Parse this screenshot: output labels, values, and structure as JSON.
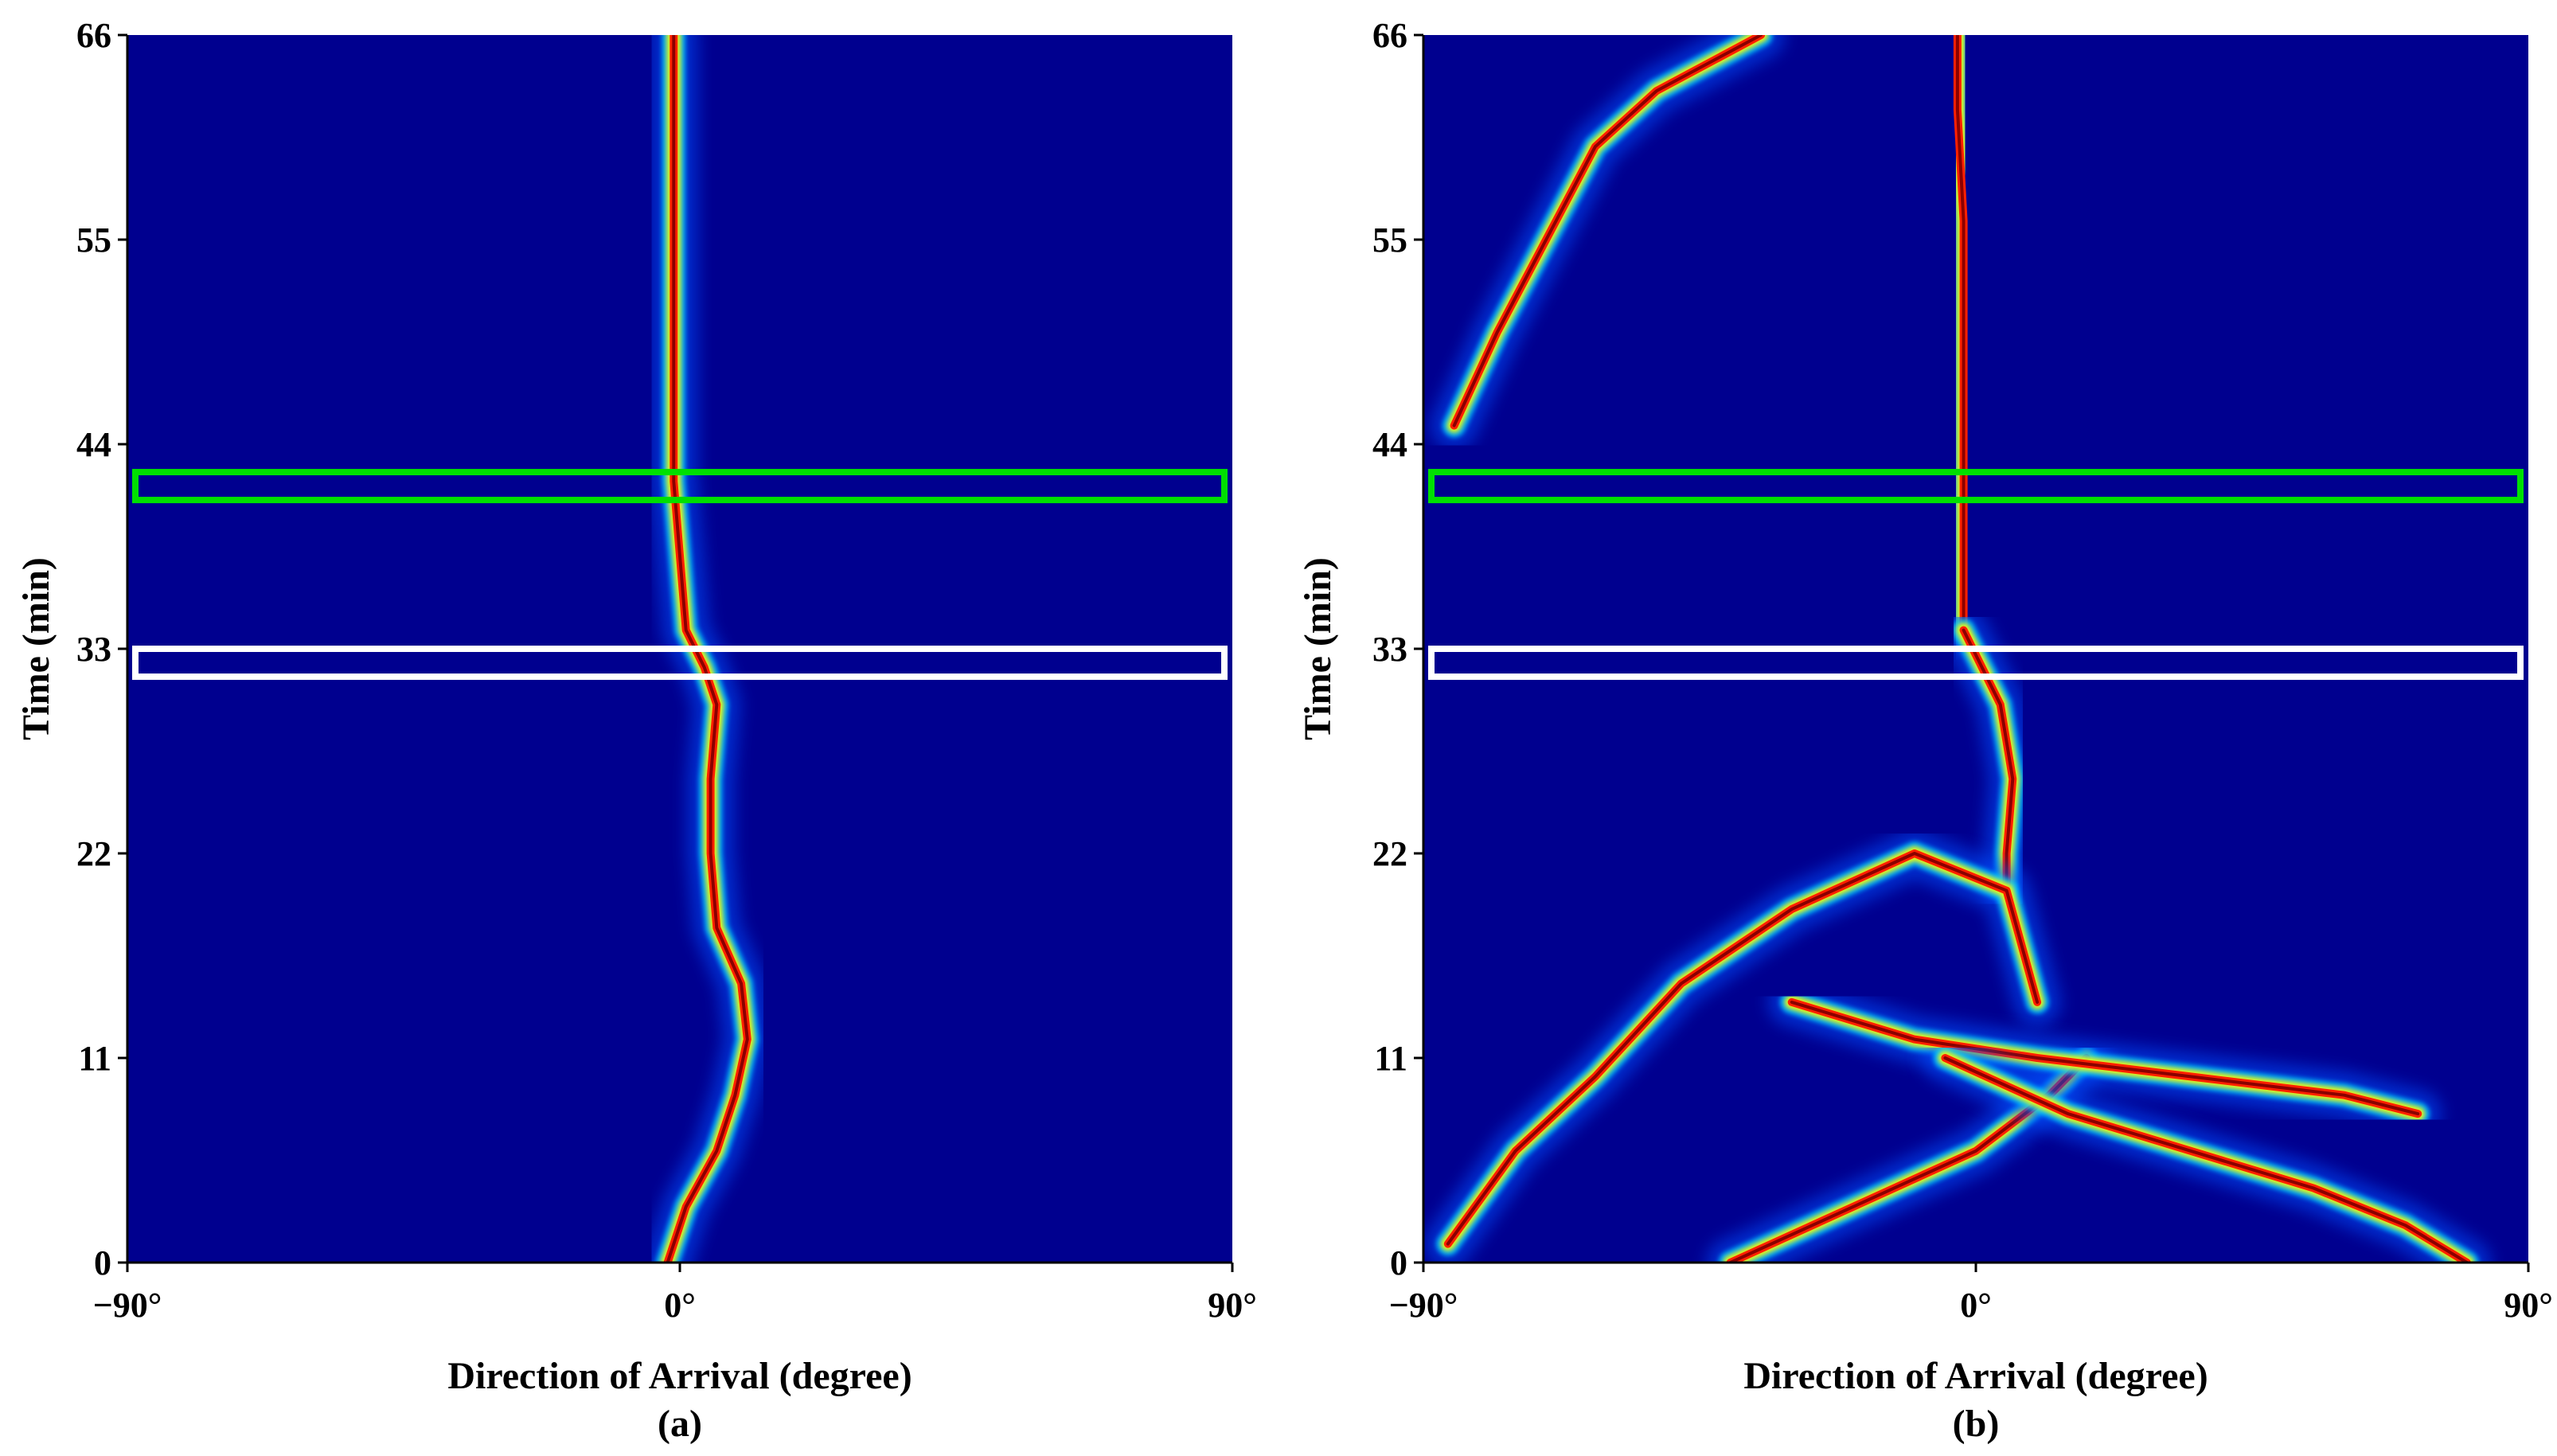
{
  "chart_data": [
    {
      "type": "heatmap",
      "panel_label": "(a)",
      "xlabel": "Direction of Arrival (degree)",
      "ylabel": "Time (min)",
      "xlim": [
        -90,
        90
      ],
      "ylim": [
        0,
        66
      ],
      "x_ticks": [
        "−90°",
        "0°",
        "90°"
      ],
      "x_tick_values": [
        -90,
        0,
        90
      ],
      "y_ticks": [
        "0",
        "11",
        "22",
        "33",
        "44",
        "55",
        "66"
      ],
      "y_tick_values": [
        0,
        11,
        22,
        33,
        44,
        55,
        66
      ],
      "colormap": "jet",
      "background_color": "#00008f",
      "tracks": [
        {
          "points": [
            [
              -2,
              0
            ],
            [
              1,
              3
            ],
            [
              6,
              6
            ],
            [
              9,
              9
            ],
            [
              11,
              12
            ],
            [
              10,
              15
            ],
            [
              6,
              18
            ],
            [
              5,
              22
            ],
            [
              5,
              26
            ],
            [
              6,
              30
            ],
            [
              4,
              32
            ],
            [
              1,
              34
            ],
            [
              0,
              38
            ],
            [
              -1,
              42
            ],
            [
              -1,
              48
            ],
            [
              -1,
              55
            ],
            [
              -1,
              62
            ],
            [
              -1,
              66
            ]
          ]
        }
      ],
      "highlight_boxes": [
        {
          "color": "#00e000",
          "t_range": [
            41,
            42.5
          ]
        },
        {
          "color": "#ffffff",
          "t_range": [
            31.5,
            33
          ]
        }
      ]
    },
    {
      "type": "heatmap",
      "panel_label": "(b)",
      "xlabel": "Direction of Arrival (degree)",
      "ylabel": "Time (min)",
      "xlim": [
        -90,
        90
      ],
      "ylim": [
        0,
        66
      ],
      "x_ticks": [
        "−90°",
        "0°",
        "90°"
      ],
      "x_tick_values": [
        -90,
        0,
        90
      ],
      "y_ticks": [
        "0",
        "11",
        "22",
        "33",
        "44",
        "55",
        "66"
      ],
      "y_tick_values": [
        0,
        11,
        22,
        33,
        44,
        55,
        66
      ],
      "colormap": "jet",
      "background_color": "#00008f",
      "tracks": [
        {
          "points": [
            [
              -2,
              34
            ],
            [
              -2,
              40
            ],
            [
              -2,
              48
            ],
            [
              -2,
              56
            ],
            [
              -3,
              62
            ],
            [
              -3,
              66
            ]
          ]
        },
        {
          "points": [
            [
              -2,
              34
            ],
            [
              4,
              30
            ],
            [
              6,
              26
            ],
            [
              5,
              22
            ],
            [
              5,
              20
            ]
          ]
        },
        {
          "points": [
            [
              -86,
              1
            ],
            [
              -75,
              6
            ],
            [
              -62,
              10
            ],
            [
              -48,
              15
            ],
            [
              -30,
              19
            ],
            [
              -10,
              22
            ],
            [
              5,
              20
            ],
            [
              10,
              14
            ]
          ]
        },
        {
          "points": [
            [
              -85,
              45
            ],
            [
              -78,
              50
            ],
            [
              -70,
              55
            ],
            [
              -62,
              60
            ],
            [
              -52,
              63
            ],
            [
              -35,
              66
            ]
          ]
        },
        {
          "points": [
            [
              -40,
              0
            ],
            [
              -20,
              3
            ],
            [
              0,
              6
            ],
            [
              12,
              9
            ],
            [
              18,
              11
            ]
          ]
        },
        {
          "points": [
            [
              -30,
              14
            ],
            [
              -10,
              12
            ],
            [
              10,
              11
            ],
            [
              35,
              10
            ],
            [
              60,
              9
            ],
            [
              72,
              8
            ]
          ]
        },
        {
          "points": [
            [
              -5,
              11
            ],
            [
              15,
              8
            ],
            [
              35,
              6
            ],
            [
              55,
              4
            ],
            [
              70,
              2
            ],
            [
              80,
              0
            ]
          ]
        }
      ],
      "highlight_boxes": [
        {
          "color": "#00e000",
          "t_range": [
            41,
            42.5
          ]
        },
        {
          "color": "#ffffff",
          "t_range": [
            31.5,
            33
          ]
        }
      ]
    }
  ]
}
